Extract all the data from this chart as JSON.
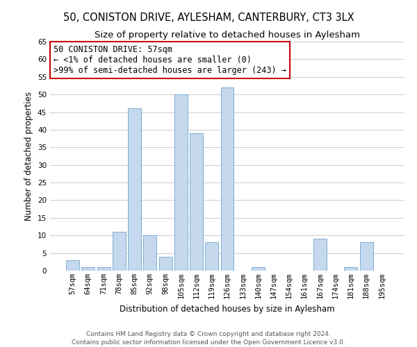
{
  "title": "50, CONISTON DRIVE, AYLESHAM, CANTERBURY, CT3 3LX",
  "subtitle": "Size of property relative to detached houses in Aylesham",
  "xlabel": "Distribution of detached houses by size in Aylesham",
  "ylabel": "Number of detached properties",
  "categories": [
    "57sqm",
    "64sqm",
    "71sqm",
    "78sqm",
    "85sqm",
    "92sqm",
    "98sqm",
    "105sqm",
    "112sqm",
    "119sqm",
    "126sqm",
    "133sqm",
    "140sqm",
    "147sqm",
    "154sqm",
    "161sqm",
    "167sqm",
    "174sqm",
    "181sqm",
    "188sqm",
    "195sqm"
  ],
  "values": [
    3,
    1,
    1,
    11,
    46,
    10,
    4,
    50,
    39,
    8,
    52,
    0,
    1,
    0,
    0,
    0,
    9,
    0,
    1,
    8,
    0
  ],
  "bar_color": "#c5d8ed",
  "bar_edge_color": "#7aaed6",
  "annotation_box_text": "50 CONISTON DRIVE: 57sqm\n← <1% of detached houses are smaller (0)\n>99% of semi-detached houses are larger (243) →",
  "annotation_box_facecolor": "#ffffff",
  "annotation_box_edgecolor": "#cc0000",
  "ylim": [
    0,
    65
  ],
  "yticks": [
    0,
    5,
    10,
    15,
    20,
    25,
    30,
    35,
    40,
    45,
    50,
    55,
    60,
    65
  ],
  "background_color": "#ffffff",
  "grid_color": "#cccccc",
  "footer_line1": "Contains HM Land Registry data © Crown copyright and database right 2024.",
  "footer_line2": "Contains public sector information licensed under the Open Government Licence v3.0.",
  "title_fontsize": 10.5,
  "subtitle_fontsize": 9.5,
  "axis_label_fontsize": 8.5,
  "tick_fontsize": 7.5,
  "annotation_fontsize": 8.5,
  "footer_fontsize": 6.5
}
